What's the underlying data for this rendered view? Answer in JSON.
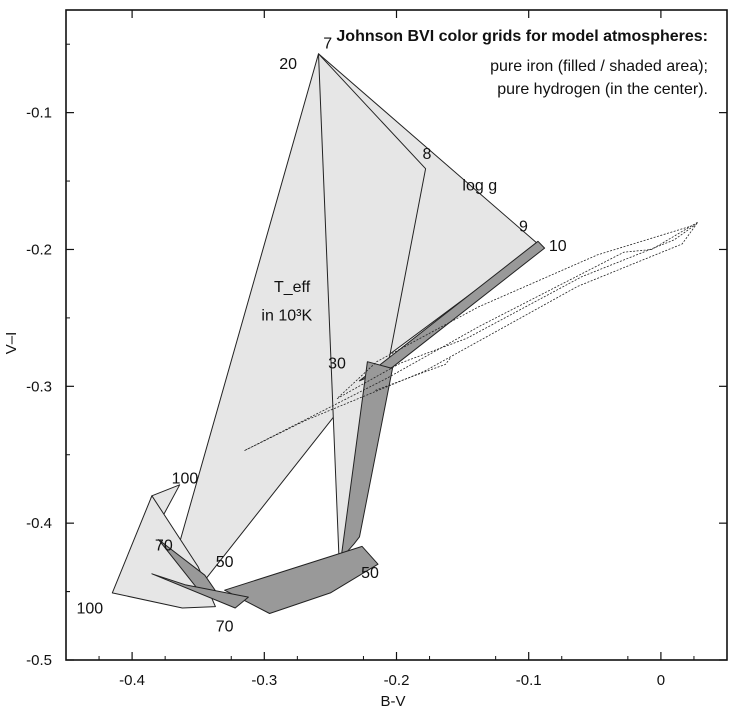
{
  "chart_data": {
    "type": "line",
    "title": "Johnson BVI color grids for model atmospheres:",
    "subtitle_lines": [
      "pure iron (filled / shaded area);",
      "pure hydrogen (in the center)."
    ],
    "xlabel": "B-V",
    "ylabel": "V–I",
    "xlim": [
      -0.45,
      0.05
    ],
    "ylim": [
      -0.5,
      -0.025
    ],
    "xticks": [
      -0.4,
      -0.3,
      -0.2,
      -0.1,
      0
    ],
    "xtick_labels": [
      "-0.4",
      "-0.3",
      "-0.2",
      "-0.1",
      "0"
    ],
    "yticks": [
      -0.1,
      -0.2,
      -0.3,
      -0.4,
      -0.5
    ],
    "ytick_labels": [
      "-0.1",
      "-0.2",
      "-0.3",
      "-0.4",
      "-0.5"
    ],
    "grid": false,
    "series": [
      {
        "role": "iron-light-region",
        "fill": "#e6e6e6",
        "points": [
          [
            -0.259,
            -0.057
          ],
          [
            -0.093,
            -0.196
          ],
          [
            -0.217,
            -0.285
          ],
          [
            -0.351,
            -0.449
          ],
          [
            -0.364,
            -0.414
          ]
        ]
      },
      {
        "role": "iron-light-region",
        "fill": "#e6e6e6",
        "points": [
          [
            -0.259,
            -0.057
          ],
          [
            -0.178,
            -0.141
          ],
          [
            -0.206,
            -0.282
          ],
          [
            -0.243,
            -0.438
          ]
        ]
      },
      {
        "role": "iron-light-region",
        "fill": "#e6e6e6",
        "points": [
          [
            -0.385,
            -0.38
          ],
          [
            -0.364,
            -0.372
          ],
          [
            -0.388,
            -0.415
          ],
          [
            -0.36,
            -0.44
          ],
          [
            -0.403,
            -0.43
          ]
        ]
      },
      {
        "role": "iron-light-region",
        "fill": "#e6e6e6",
        "points": [
          [
            -0.415,
            -0.451
          ],
          [
            -0.385,
            -0.38
          ],
          [
            -0.35,
            -0.432
          ],
          [
            -0.337,
            -0.461
          ],
          [
            -0.362,
            -0.462
          ]
        ]
      },
      {
        "role": "iron-dark-band",
        "fill": "#999999",
        "points": [
          [
            -0.093,
            -0.194
          ],
          [
            -0.088,
            -0.199
          ],
          [
            -0.203,
            -0.286
          ],
          [
            -0.228,
            -0.296
          ]
        ]
      },
      {
        "role": "iron-dark-band",
        "fill": "#999999",
        "points": [
          [
            -0.222,
            -0.282
          ],
          [
            -0.203,
            -0.287
          ],
          [
            -0.228,
            -0.41
          ],
          [
            -0.232,
            -0.415
          ],
          [
            -0.242,
            -0.426
          ]
        ]
      },
      {
        "role": "iron-dark-band",
        "fill": "#999999",
        "points": [
          [
            -0.226,
            -0.417
          ],
          [
            -0.214,
            -0.43
          ],
          [
            -0.25,
            -0.451
          ],
          [
            -0.296,
            -0.466
          ],
          [
            -0.33,
            -0.449
          ]
        ]
      },
      {
        "role": "iron-dark-band",
        "fill": "#999999",
        "points": [
          [
            -0.38,
            -0.412
          ],
          [
            -0.345,
            -0.438
          ],
          [
            -0.333,
            -0.455
          ],
          [
            -0.348,
            -0.451
          ]
        ]
      },
      {
        "role": "iron-dark-band",
        "fill": "#999999",
        "points": [
          [
            -0.385,
            -0.437
          ],
          [
            -0.36,
            -0.445
          ],
          [
            -0.312,
            -0.454
          ],
          [
            -0.322,
            -0.462
          ]
        ]
      },
      {
        "role": "hydrogen-grid",
        "fill": "none",
        "points": [
          [
            -0.315,
            -0.347
          ],
          [
            -0.207,
            -0.294
          ],
          [
            -0.137,
            -0.256
          ],
          [
            -0.028,
            -0.202
          ],
          [
            -0.007,
            -0.2
          ],
          [
            0.028,
            -0.18
          ],
          [
            0.016,
            -0.196
          ],
          [
            -0.063,
            -0.227
          ],
          [
            -0.179,
            -0.289
          ],
          [
            -0.269,
            -0.325
          ],
          [
            -0.315,
            -0.347
          ]
        ]
      },
      {
        "role": "hydrogen-grid",
        "fill": "none",
        "points": [
          [
            -0.245,
            -0.309
          ],
          [
            -0.197,
            -0.283
          ],
          [
            -0.147,
            -0.265
          ],
          [
            -0.06,
            -0.22
          ],
          [
            0.01,
            -0.193
          ],
          [
            0.026,
            -0.182
          ],
          [
            -0.048,
            -0.204
          ],
          [
            -0.138,
            -0.242
          ],
          [
            -0.215,
            -0.282
          ],
          [
            -0.245,
            -0.309
          ]
        ]
      },
      {
        "role": "hydrogen-grid",
        "fill": "none",
        "points": [
          [
            -0.216,
            -0.303
          ],
          [
            -0.183,
            -0.291
          ],
          [
            -0.163,
            -0.284
          ],
          [
            -0.159,
            -0.279
          ]
        ]
      }
    ],
    "annotations": [
      {
        "text": "7",
        "x": -0.252,
        "y": -0.053
      },
      {
        "text": "20",
        "x": -0.282,
        "y": -0.068
      },
      {
        "text": "8",
        "x": -0.177,
        "y": -0.134
      },
      {
        "text": "log g",
        "x": -0.137,
        "y": -0.157
      },
      {
        "text": "9",
        "x": -0.104,
        "y": -0.187
      },
      {
        "text": "10",
        "x": -0.078,
        "y": -0.201
      },
      {
        "text": "T_eff",
        "x": -0.279,
        "y": -0.231
      },
      {
        "text": "in 10³K",
        "x": -0.283,
        "y": -0.252
      },
      {
        "text": "30",
        "x": -0.245,
        "y": -0.287
      },
      {
        "text": "100",
        "x": -0.36,
        "y": -0.371
      },
      {
        "text": "70",
        "x": -0.376,
        "y": -0.42
      },
      {
        "text": "50",
        "x": -0.33,
        "y": -0.432
      },
      {
        "text": "50",
        "x": -0.22,
        "y": -0.44
      },
      {
        "text": "100",
        "x": -0.432,
        "y": -0.466
      },
      {
        "text": "70",
        "x": -0.33,
        "y": -0.479
      }
    ]
  }
}
